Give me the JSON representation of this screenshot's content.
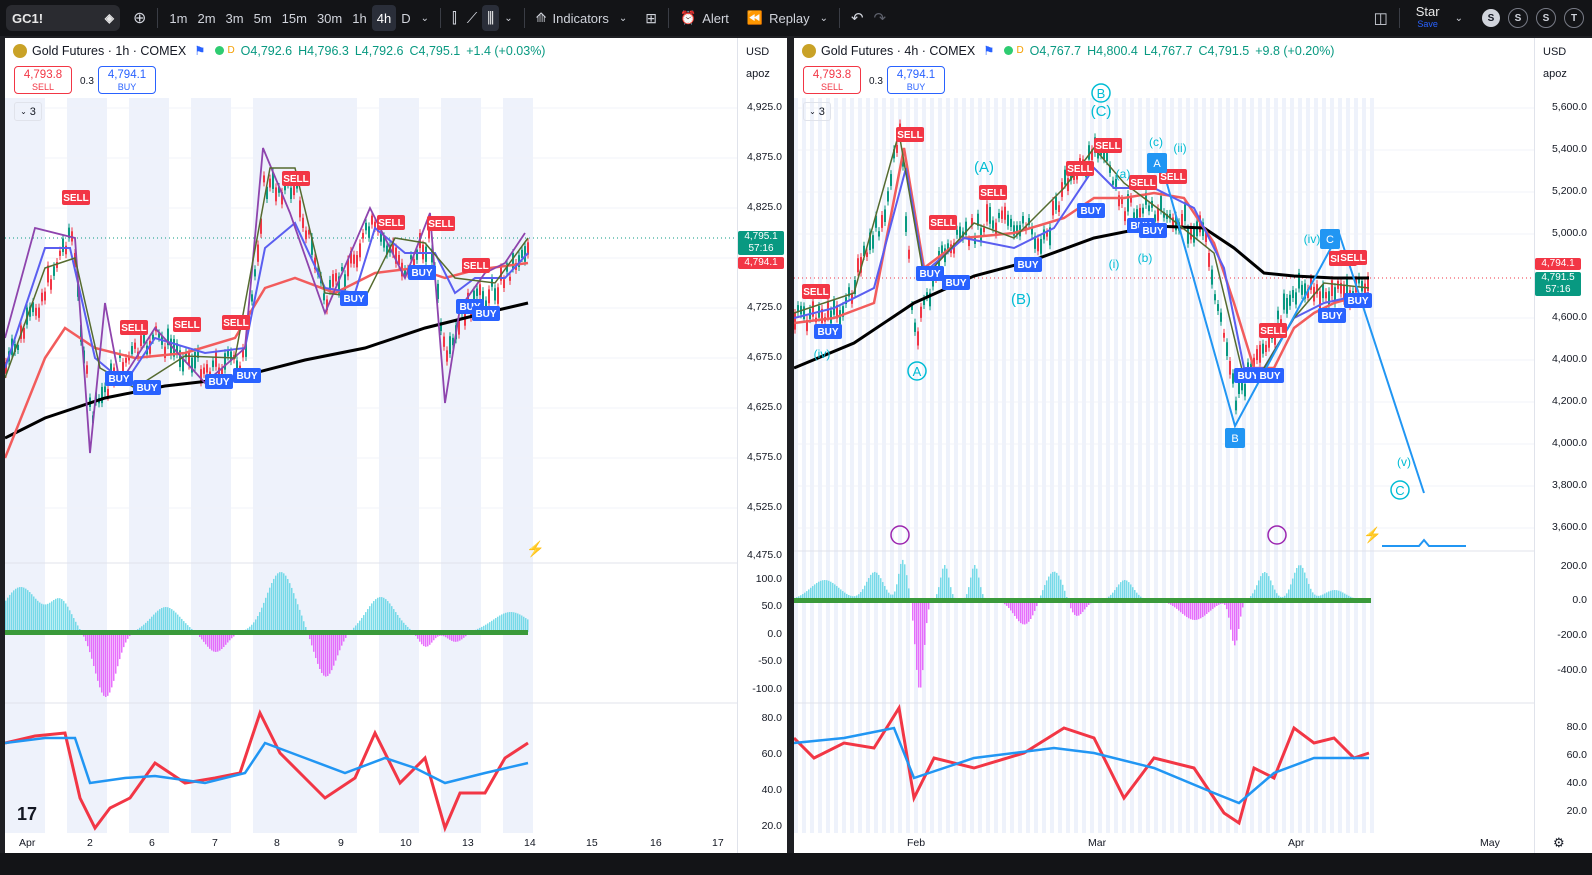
{
  "toolbar": {
    "symbol": "GC1!",
    "intervals": [
      "1m",
      "2m",
      "3m",
      "5m",
      "15m",
      "30m",
      "1h",
      "4h",
      "D"
    ],
    "active_interval": "4h",
    "indicators_label": "Indicators",
    "alert_label": "Alert",
    "replay_label": "Replay",
    "layout_name": "Star",
    "save_label": "Save",
    "circle_labels": [
      "S",
      "S",
      "S",
      "T"
    ]
  },
  "left_chart": {
    "title": "Gold Futures · 1h · COMEX",
    "ohlc": {
      "o": "O4,792.6",
      "h": "H4,796.3",
      "l": "L4,792.6",
      "c": "C4,795.1",
      "chg": "+1.4 (+0.03%)"
    },
    "sell_price": "4,793.8",
    "sell_label": "SELL",
    "buy_price": "4,794.1",
    "buy_label": "BUY",
    "spread": "0.3",
    "collapse_count": "3",
    "currency": "USD",
    "axis_mode": "apoz",
    "price_labels": [
      "4,925.0",
      "4,875.0",
      "4,825.0",
      "4,725.0",
      "4,675.0",
      "4,625.0",
      "4,575.0",
      "4,525.0",
      "4,475.0"
    ],
    "price_tag_green": "4,795.1",
    "price_tag_time": "57:16",
    "price_tag_red": "4,794.1",
    "osc_labels": [
      "100.0",
      "50.0",
      "0.0",
      "-50.0",
      "-100.0"
    ],
    "rsi_labels": [
      "80.0",
      "60.0",
      "40.0",
      "20.0"
    ],
    "x_labels": [
      "Apr",
      "2",
      "6",
      "7",
      "8",
      "9",
      "10",
      "13",
      "14",
      "15",
      "16",
      "17"
    ],
    "sell_markers": [
      "SELL",
      "SELL",
      "SELL",
      "SELL",
      "SELL",
      "SELL",
      "SELL",
      "SELL"
    ],
    "buy_markers": [
      "BUY",
      "BUY",
      "BUY",
      "BUY",
      "BUY",
      "BUY",
      "BUY",
      "BUY"
    ]
  },
  "right_chart": {
    "title": "Gold Futures · 4h · COMEX",
    "ohlc": {
      "o": "O4,767.7",
      "h": "H4,800.4",
      "l": "L4,767.7",
      "c": "C4,791.5",
      "chg": "+9.8 (+0.20%)"
    },
    "sell_price": "4,793.8",
    "sell_label": "SELL",
    "buy_price": "4,794.1",
    "buy_label": "BUY",
    "spread": "0.3",
    "collapse_count": "3",
    "currency": "USD",
    "axis_mode": "apoz",
    "price_labels": [
      "5,600.0",
      "5,400.0",
      "5,200.0",
      "5,000.0",
      "4,600.0",
      "4,400.0",
      "4,200.0",
      "4,000.0",
      "3,800.0",
      "3,600.0"
    ],
    "price_tag_red": "4,794.1",
    "price_tag_green": "4,791.5",
    "price_tag_time": "57:16",
    "osc_labels": [
      "200.0",
      "0.0",
      "-200.0",
      "-400.0"
    ],
    "rsi_labels": [
      "80.0",
      "60.0",
      "40.0",
      "20.0"
    ],
    "x_labels": [
      "Feb",
      "Mar",
      "Apr",
      "May"
    ],
    "wave_labels": {
      "B_circ": "B",
      "C_paren": "(C)",
      "A_paren": "(A)",
      "B_paren": "(B)",
      "c": "(c)",
      "ii": "(ii)",
      "a": "(a)",
      "i": "(i)",
      "b": "(b)",
      "iv_top": "(iv)",
      "iv_left": "(iv)",
      "v": "(v)",
      "A_circ": "A",
      "C_circ": "C",
      "A_box": "A",
      "B_box": "B",
      "C_box": "C"
    },
    "sell_markers": [
      "SELL",
      "SELL",
      "SELL",
      "SELL",
      "SELL",
      "SELL",
      "SELL",
      "SELL",
      "SELL",
      "SELL",
      "SELL"
    ],
    "buy_markers": [
      "BUY",
      "BUY",
      "BUY",
      "BUY",
      "BUY",
      "BUY",
      "BUY",
      "BUY",
      "BUY",
      "BUY",
      "BUY"
    ]
  },
  "colors": {
    "sell": "#f23645",
    "buy": "#2962ff",
    "up": "#089981",
    "down": "#f23645",
    "wave": "#00bcd4"
  }
}
